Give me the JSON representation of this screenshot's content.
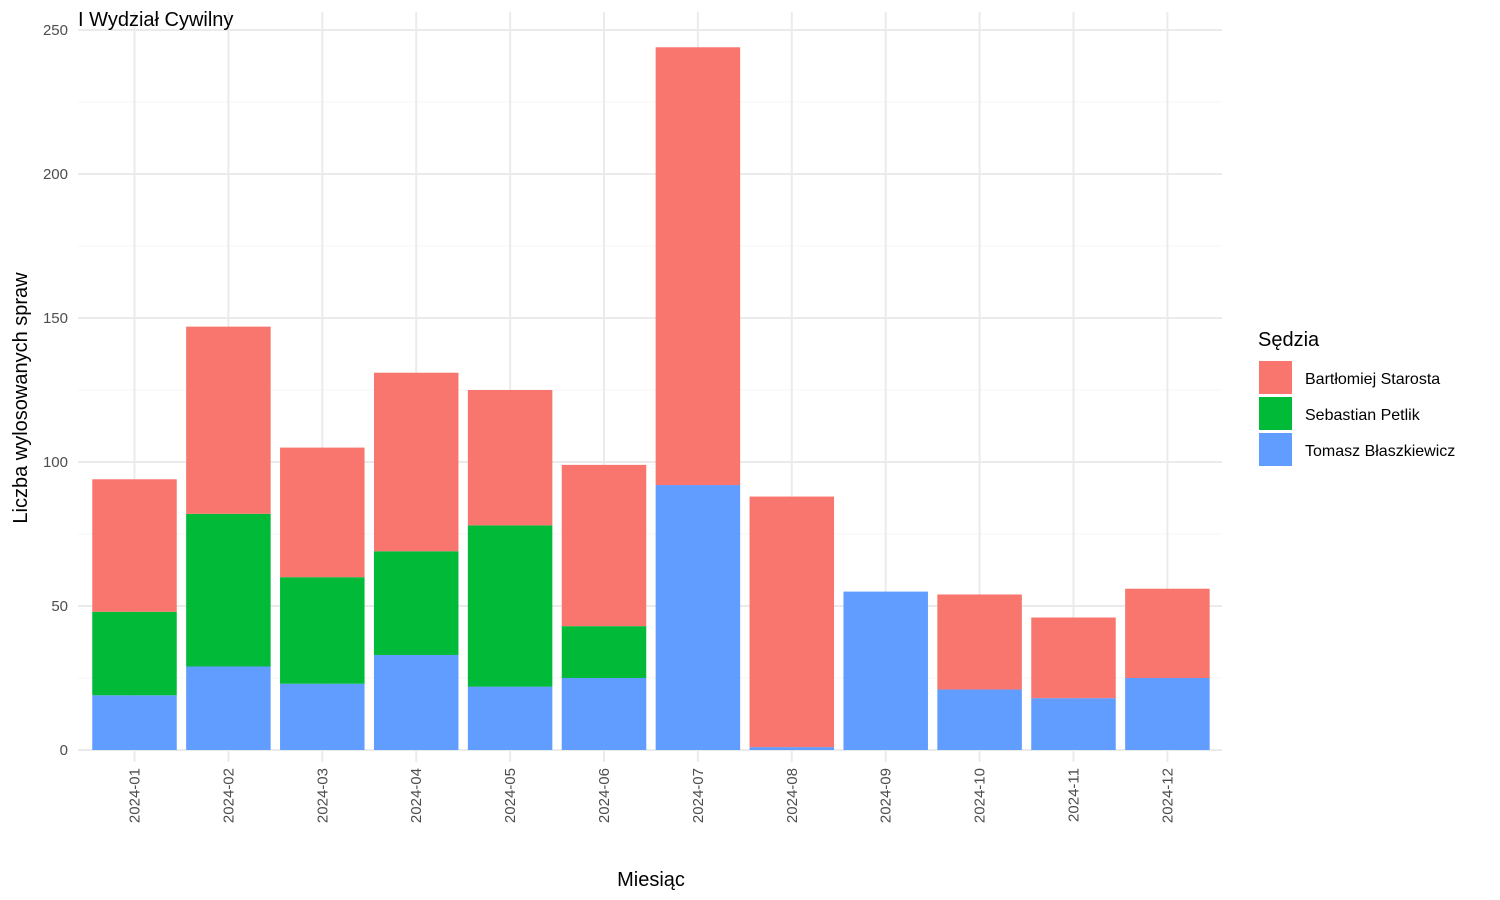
{
  "chart_data": {
    "type": "bar",
    "stacked": true,
    "title": "I Wydział Cywilny",
    "xlabel": "Miesiąc",
    "ylabel": "Liczba wylosowanych spraw",
    "ylim": [
      0,
      250
    ],
    "yticks": [
      0,
      50,
      100,
      150,
      200,
      250
    ],
    "grid": true,
    "legend": {
      "title": "Sędzia",
      "placement": "right"
    },
    "categories": [
      "2024-01",
      "2024-02",
      "2024-03",
      "2024-04",
      "2024-05",
      "2024-06",
      "2024-07",
      "2024-08",
      "2024-09",
      "2024-10",
      "2024-11",
      "2024-12"
    ],
    "series": [
      {
        "name": "Bartłomiej Starosta",
        "color": "#F8766D",
        "values": [
          46,
          65,
          45,
          62,
          47,
          56,
          152,
          87,
          0,
          33,
          28,
          31
        ]
      },
      {
        "name": "Sebastian Petlik",
        "color": "#00BA38",
        "values": [
          29,
          53,
          37,
          36,
          56,
          18,
          0,
          0,
          0,
          0,
          0,
          0
        ]
      },
      {
        "name": "Tomasz Błaszkiewicz",
        "color": "#619CFF",
        "values": [
          19,
          29,
          23,
          33,
          22,
          25,
          92,
          1,
          55,
          21,
          18,
          25
        ]
      }
    ]
  }
}
